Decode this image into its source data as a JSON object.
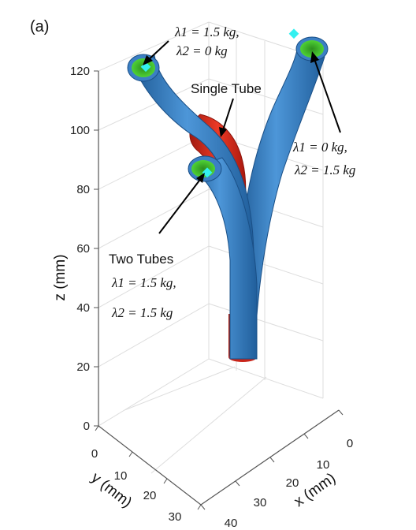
{
  "chart_data": {
    "type": "3d-line",
    "panel_label": "(a)",
    "xlabel": "x (mm)",
    "ylabel": "y (mm)",
    "zlabel": "z (mm)",
    "x_ticks": [
      "0",
      "10",
      "20",
      "30",
      "40"
    ],
    "y_ticks": [
      "0",
      "10",
      "20",
      "30"
    ],
    "z_ticks": [
      "0",
      "20",
      "40",
      "60",
      "80",
      "100",
      "120"
    ],
    "xlim": [
      0,
      40
    ],
    "ylim": [
      0,
      30
    ],
    "zlim": [
      0,
      120
    ],
    "grid": true,
    "colors": {
      "outer_tube": "#3b7fc4",
      "inner_tube": "#e0271b",
      "tip_disk": "#3fbf2a",
      "marker": "#33f0f0"
    },
    "annotations": {
      "single_tube": "Single Tube",
      "two_tubes": "Two Tubes",
      "left_tip_lambda1": "λ1 = 1.5 kg,",
      "left_tip_lambda2": "λ2 = 0 kg",
      "right_tip_lambda1": "λ1 = 0 kg,",
      "right_tip_lambda2": "λ2 = 1.5 kg",
      "two_tubes_lambda1": "λ1 = 1.5 kg,",
      "two_tubes_lambda2": "λ2 = 1.5 kg"
    }
  }
}
